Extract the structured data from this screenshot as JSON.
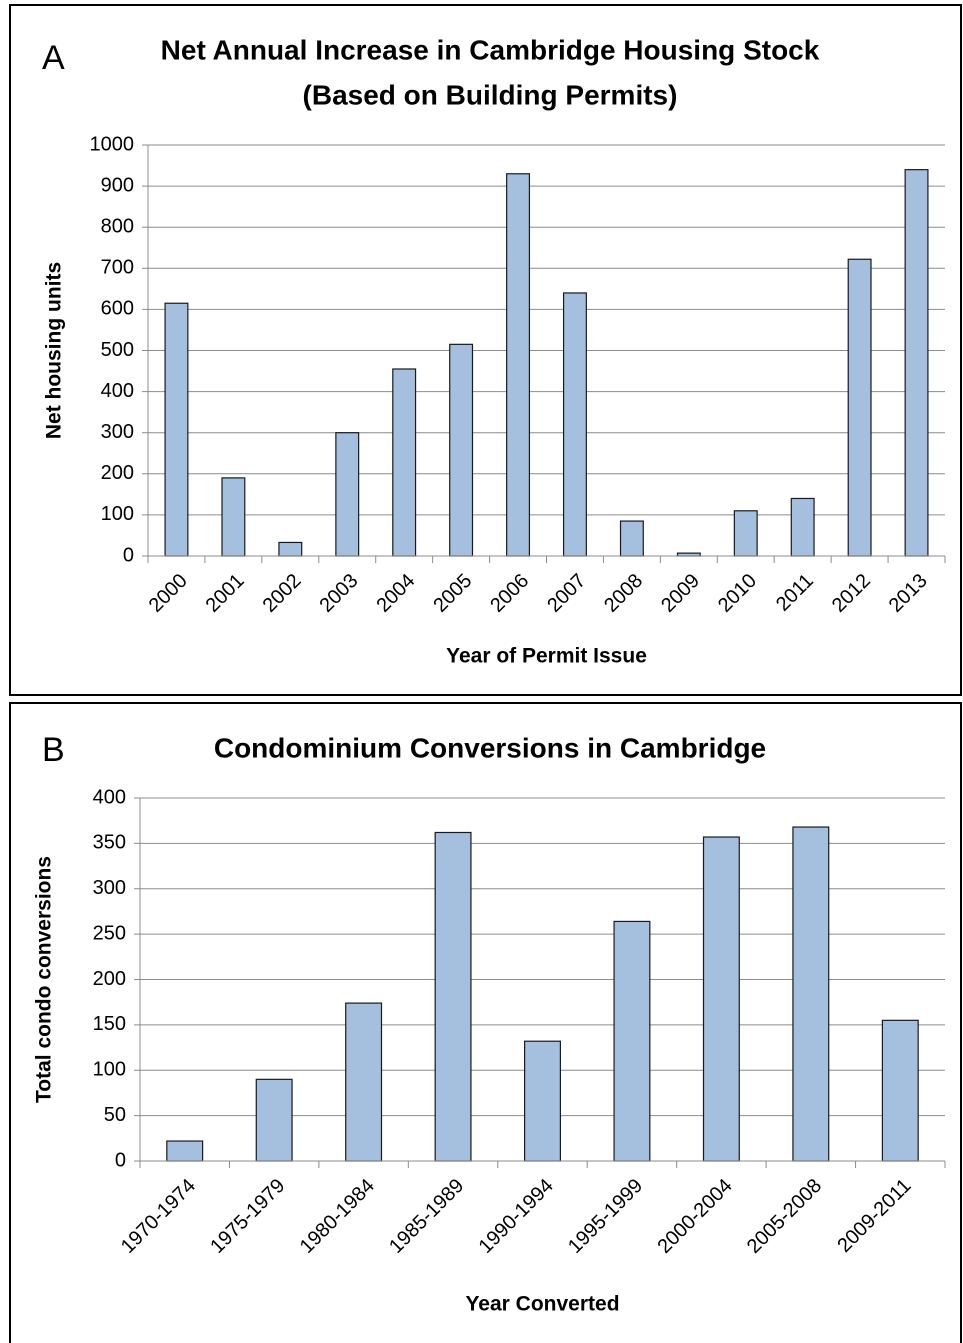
{
  "chart_data": [
    {
      "type": "bar",
      "panel": "A",
      "title": "Net Annual Increase in Cambridge Housing Stock",
      "subtitle": "(Based on Building Permits)",
      "x_label": "Year of Permit Issue",
      "y_label": "Net housing units",
      "categories": [
        "2000",
        "2001",
        "2002",
        "2003",
        "2004",
        "2005",
        "2006",
        "2007",
        "2008",
        "2009",
        "2010",
        "2011",
        "2012",
        "2013"
      ],
      "values": [
        615,
        190,
        33,
        300,
        455,
        515,
        930,
        640,
        85,
        7,
        110,
        140,
        722,
        940
      ],
      "color": "#a5bfdf",
      "ylim": [
        0,
        1000
      ],
      "yticks": [
        0,
        100,
        200,
        300,
        400,
        500,
        600,
        700,
        800,
        900,
        1000
      ],
      "grid": true
    },
    {
      "type": "bar",
      "panel": "B",
      "title": "Condominium Conversions in Cambridge",
      "x_label": "Year Converted",
      "y_label": "Total condo conversions",
      "categories": [
        "1970-1974",
        "1975-1979",
        "1980-1984",
        "1985-1989",
        "1990-1994",
        "1995-1999",
        "2000-2004",
        "2005-2008",
        "2009-2011"
      ],
      "values": [
        22,
        90,
        174,
        362,
        132,
        264,
        357,
        368,
        155
      ],
      "color": "#a5bfdf",
      "ylim": [
        0,
        400
      ],
      "yticks": [
        0,
        50,
        100,
        150,
        200,
        250,
        300,
        350,
        400
      ],
      "grid": true
    }
  ]
}
